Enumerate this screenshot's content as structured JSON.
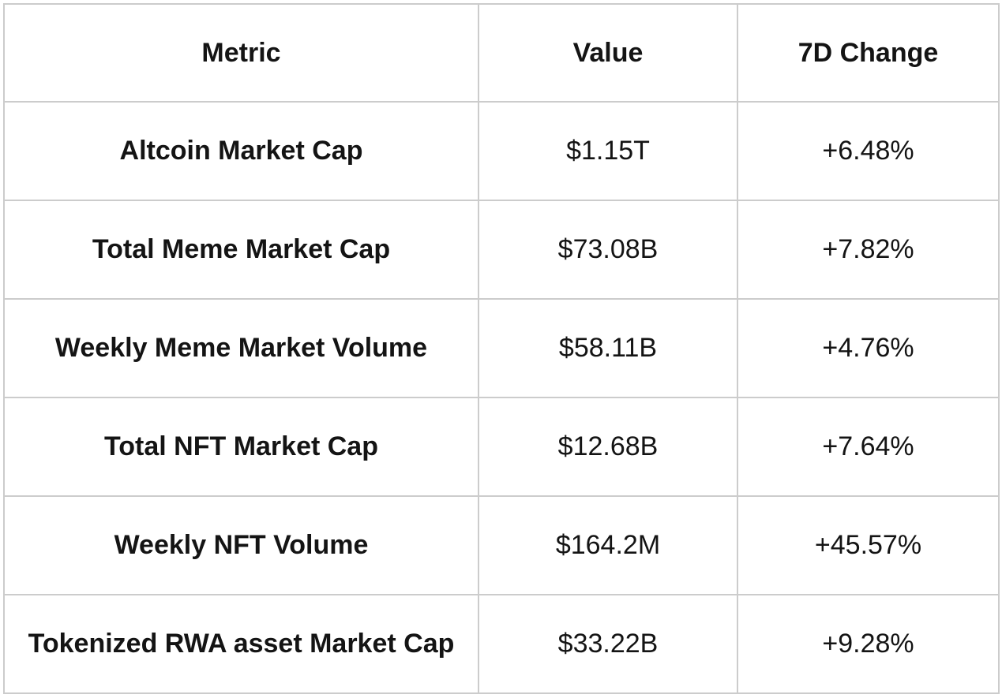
{
  "chart_data": {
    "type": "table",
    "columns": [
      "Metric",
      "Value",
      "7D Change"
    ],
    "rows": [
      [
        "Altcoin Market Cap",
        "$1.15T",
        "+6.48%"
      ],
      [
        "Total Meme Market Cap",
        "$73.08B",
        "+7.82%"
      ],
      [
        "Weekly Meme Market Volume",
        "$58.11B",
        "+4.76%"
      ],
      [
        "Total NFT Market Cap",
        "$12.68B",
        "+7.64%"
      ],
      [
        "Weekly NFT Volume",
        "$164.2M",
        "+45.57%"
      ],
      [
        "Tokenized RWA asset Market Cap",
        "$33.22B",
        "+9.28%"
      ]
    ]
  },
  "colors": {
    "background": "#ffffff",
    "border": "#cccccc",
    "text": "#141414"
  }
}
